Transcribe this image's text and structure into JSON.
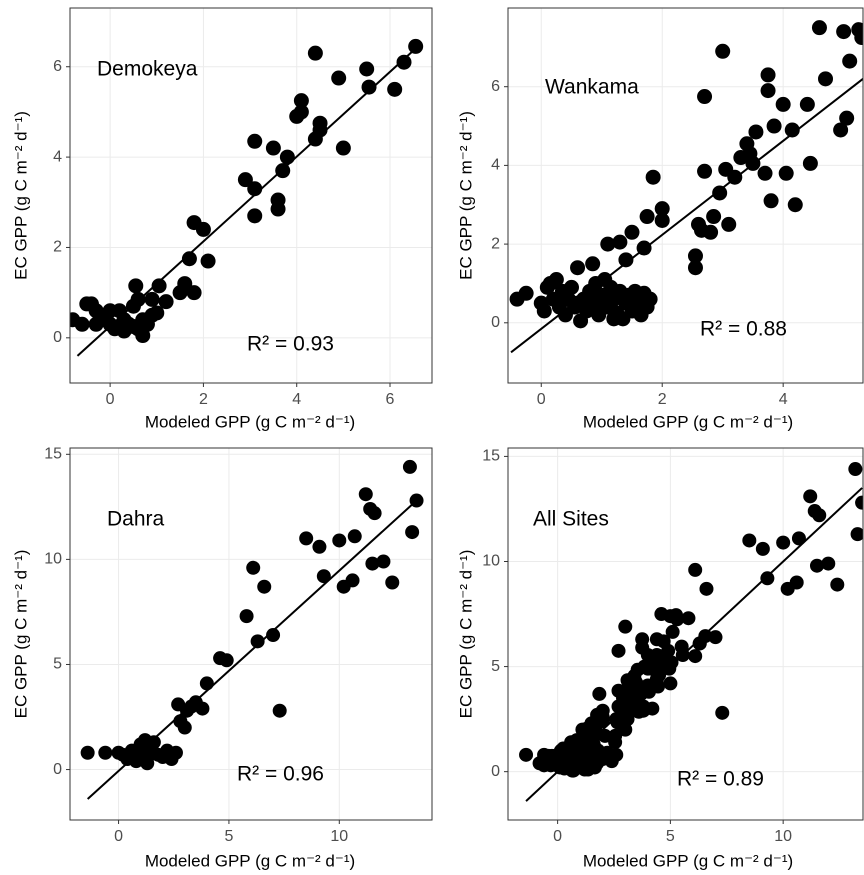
{
  "chart_data": [
    {
      "type": "scatter",
      "title": "Demokeya",
      "annotation": "R² = 0.93",
      "x_label": "Modeled GPP  (g C m⁻² d⁻¹)",
      "y_label": "EC GPP  (g C m⁻² d⁻¹)",
      "color": "#000000",
      "grid": true,
      "xlim": [
        -0.86,
        6.9
      ],
      "ylim": [
        -1.0,
        7.3
      ],
      "xticks": [
        0,
        2,
        4,
        6
      ],
      "yticks": [
        0,
        2,
        4,
        6
      ],
      "x": [
        -0.8,
        -0.6,
        -0.5,
        -0.4,
        -0.3,
        -0.2,
        -0.1,
        0,
        0.1,
        0.2,
        0.3,
        0.4,
        0.5,
        0.5,
        0.6,
        0.6,
        0.7,
        0.7,
        0.8,
        0.9,
        -0.3,
        0,
        0.3,
        0.55,
        0.9,
        1.0,
        1.05,
        1.2,
        1.5,
        1.6,
        1.7,
        1.8,
        1.8,
        2.0,
        2.1,
        2.9,
        3.1,
        3.1,
        3.1,
        3.5,
        3.6,
        3.6,
        3.7,
        3.8,
        4.0,
        4.1,
        4.1,
        4.4,
        4.4,
        4.5,
        4.5,
        4.9,
        5.0,
        5.5,
        5.55,
        6.1,
        6.3,
        6.55
      ],
      "values": [
        0.4,
        0.3,
        0.75,
        0.75,
        0.6,
        0.5,
        0.4,
        0.3,
        0.2,
        0.6,
        0.4,
        0.3,
        0.7,
        0.25,
        0.85,
        0.2,
        0.05,
        0.4,
        0.3,
        0.5,
        0.3,
        0.6,
        0.15,
        1.15,
        0.85,
        0.55,
        1.15,
        0.8,
        1.0,
        1.2,
        1.75,
        1.0,
        2.55,
        2.4,
        1.7,
        3.5,
        4.35,
        3.3,
        2.7,
        4.2,
        3.05,
        2.85,
        3.7,
        4.0,
        4.9,
        5.25,
        5.0,
        4.4,
        6.3,
        4.75,
        4.6,
        5.75,
        4.2,
        5.95,
        5.55,
        5.5,
        6.1,
        6.45
      ],
      "regression_line": {
        "x": [
          -0.7,
          6.6
        ],
        "y": [
          -0.4,
          6.45
        ]
      }
    },
    {
      "type": "scatter",
      "title": "Wankama",
      "annotation": "R² = 0.88",
      "x_label": "Modeled GPP  (g C m⁻² d⁻¹)",
      "y_label": "EC GPP  (g C m⁻² d⁻¹)",
      "color": "#000000",
      "grid": true,
      "xlim": [
        -0.55,
        5.32
      ],
      "ylim": [
        -1.53,
        8.0
      ],
      "xticks": [
        0,
        2,
        4
      ],
      "yticks": [
        0,
        2,
        4,
        6
      ],
      "x": [
        -0.4,
        -0.25,
        0,
        0.05,
        0.1,
        0.15,
        0.2,
        0.25,
        0.3,
        0.35,
        0.4,
        0.45,
        0.5,
        0.55,
        0.6,
        0.65,
        0.7,
        0.75,
        0.8,
        0.85,
        0.9,
        0.95,
        1.0,
        1.05,
        1.1,
        1.15,
        1.2,
        1.25,
        1.3,
        1.35,
        1.4,
        1.45,
        1.5,
        1.55,
        1.6,
        1.65,
        1.7,
        1.75,
        1.8,
        0.3,
        0.6,
        0.9,
        1.2,
        0.9,
        1.1,
        1.3,
        1.4,
        1.5,
        1.7,
        1.75,
        1.85,
        2.0,
        2.0,
        2.55,
        2.55,
        2.6,
        2.65,
        2.7,
        2.7,
        2.8,
        2.85,
        2.95,
        3.0,
        3.05,
        3.1,
        3.2,
        3.3,
        3.4,
        3.45,
        3.5,
        3.55,
        3.7,
        3.75,
        3.75,
        3.8,
        3.85,
        4.0,
        4.05,
        4.15,
        4.2,
        4.4,
        4.45,
        4.6,
        4.7,
        4.95,
        5.0,
        5.05,
        5.1,
        5.25,
        5.3
      ],
      "values": [
        0.6,
        0.75,
        0.5,
        0.3,
        0.9,
        1.0,
        0.6,
        1.1,
        0.4,
        0.8,
        0.2,
        0.6,
        0.9,
        0.4,
        1.4,
        0.05,
        0.6,
        0.3,
        0.8,
        1.5,
        0.5,
        0.2,
        0.7,
        1.1,
        0.4,
        0.9,
        0.6,
        0.25,
        0.8,
        0.1,
        0.5,
        0.7,
        0.3,
        0.8,
        0.55,
        0.2,
        0.75,
        0.4,
        0.6,
        0.6,
        0.5,
        0.35,
        0.1,
        1.0,
        2.0,
        2.05,
        1.6,
        2.3,
        1.9,
        2.7,
        3.7,
        2.6,
        2.9,
        1.4,
        1.7,
        2.5,
        2.35,
        3.85,
        5.75,
        2.3,
        2.7,
        3.3,
        6.9,
        3.9,
        2.5,
        3.7,
        4.2,
        4.55,
        4.3,
        4.05,
        4.85,
        3.8,
        5.9,
        6.3,
        3.1,
        5.0,
        5.55,
        3.8,
        4.9,
        3.0,
        5.55,
        4.05,
        7.5,
        6.2,
        4.9,
        7.4,
        5.2,
        6.65,
        7.45,
        7.25
      ],
      "regression_line": {
        "x": [
          -0.5,
          5.32
        ],
        "y": [
          -0.75,
          6.2
        ]
      }
    },
    {
      "type": "scatter",
      "title": "Dahra",
      "annotation": "R² = 0.96",
      "x_label": "Modeled GPP  (g C m⁻² d⁻¹)",
      "y_label": "EC GPP  (g C m⁻² d⁻¹)",
      "color": "#000000",
      "grid": true,
      "xlim": [
        -2.2,
        14.2
      ],
      "ylim": [
        -2.4,
        15.3
      ],
      "xticks": [
        0,
        5,
        10
      ],
      "yticks": [
        0,
        5,
        10,
        15
      ],
      "x": [
        -1.4,
        -0.6,
        0,
        0.2,
        0.4,
        0.6,
        0.8,
        0.9,
        1.0,
        1.1,
        1.2,
        1.3,
        1.4,
        1.5,
        1.6,
        1.8,
        2.0,
        2.2,
        2.4,
        2.6,
        2.7,
        2.8,
        3.0,
        3.1,
        3.3,
        3.5,
        3.8,
        4.0,
        4.6,
        4.9,
        5.8,
        6.1,
        6.3,
        6.6,
        7.0,
        7.3,
        8.5,
        9.1,
        9.3,
        10.0,
        10.2,
        10.6,
        10.7,
        11.2,
        11.4,
        11.5,
        11.6,
        12.0,
        12.4,
        13.2,
        13.3,
        13.5
      ],
      "values": [
        0.8,
        0.8,
        0.8,
        0.7,
        0.5,
        0.9,
        0.4,
        0.6,
        1.2,
        0.9,
        1.4,
        0.3,
        0.7,
        1.0,
        1.3,
        0.7,
        0.6,
        0.9,
        0.5,
        0.8,
        3.1,
        2.3,
        2.0,
        2.8,
        3.0,
        3.2,
        2.9,
        4.1,
        5.3,
        5.2,
        7.3,
        9.6,
        6.1,
        8.7,
        6.4,
        2.8,
        11.0,
        10.6,
        9.2,
        10.9,
        8.7,
        9.0,
        11.1,
        13.1,
        12.4,
        9.8,
        12.2,
        9.9,
        8.9,
        14.4,
        11.3,
        12.8
      ],
      "regression_line": {
        "x": [
          -1.4,
          13.5
        ],
        "y": [
          -1.4,
          12.8
        ]
      }
    },
    {
      "type": "scatter",
      "title": "All Sites",
      "annotation": "R² = 0.89",
      "x_label": "Modeled GPP  (g C m⁻² d⁻¹)",
      "y_label": "EC GPP  (g C m⁻² d⁻¹)",
      "color": "#000000",
      "grid": true,
      "xlim": [
        -2.2,
        13.54
      ],
      "ylim": [
        -2.3,
        15.4
      ],
      "xticks": [
        0,
        5,
        10
      ],
      "yticks": [
        0,
        5,
        10,
        15
      ],
      "x": [
        -0.8,
        -0.6,
        -0.5,
        -0.4,
        -0.3,
        -0.2,
        -0.1,
        0,
        0.1,
        0.2,
        0.3,
        0.4,
        0.5,
        0.5,
        0.6,
        0.6,
        0.7,
        0.7,
        0.8,
        0.9,
        -0.3,
        0,
        0.3,
        0.55,
        0.9,
        1.0,
        1.05,
        1.2,
        1.5,
        1.6,
        1.7,
        1.8,
        1.8,
        2.0,
        2.1,
        2.9,
        3.1,
        3.1,
        3.1,
        3.5,
        3.6,
        3.6,
        3.7,
        3.8,
        4.0,
        4.1,
        4.1,
        4.4,
        4.4,
        4.5,
        4.5,
        4.9,
        5.0,
        5.5,
        5.55,
        6.1,
        6.3,
        6.55,
        -0.4,
        -0.25,
        0,
        0.05,
        0.1,
        0.15,
        0.2,
        0.25,
        0.3,
        0.35,
        0.4,
        0.45,
        0.5,
        0.55,
        0.6,
        0.65,
        0.7,
        0.75,
        0.8,
        0.85,
        0.9,
        0.95,
        1.0,
        1.05,
        1.1,
        1.15,
        1.2,
        1.25,
        1.3,
        1.35,
        1.4,
        1.45,
        1.5,
        1.55,
        1.6,
        1.65,
        1.7,
        1.75,
        1.8,
        0.3,
        0.6,
        0.9,
        1.2,
        0.9,
        1.1,
        1.3,
        1.4,
        1.5,
        1.7,
        1.75,
        1.85,
        2.0,
        2.0,
        2.55,
        2.55,
        2.6,
        2.65,
        2.7,
        2.7,
        2.8,
        2.85,
        2.95,
        3.0,
        3.05,
        3.1,
        3.2,
        3.3,
        3.4,
        3.45,
        3.5,
        3.55,
        3.7,
        3.75,
        3.75,
        3.8,
        3.85,
        4.0,
        4.05,
        4.15,
        4.2,
        4.4,
        4.45,
        4.6,
        4.7,
        4.95,
        5.0,
        5.05,
        5.1,
        5.25,
        5.3,
        -1.4,
        -0.6,
        0,
        0.2,
        0.4,
        0.6,
        0.8,
        0.9,
        1.0,
        1.1,
        1.2,
        1.3,
        1.4,
        1.5,
        1.6,
        1.8,
        2.0,
        2.2,
        2.4,
        2.6,
        2.7,
        2.8,
        3.0,
        3.1,
        3.3,
        3.5,
        3.8,
        4.0,
        4.6,
        4.9,
        5.8,
        6.1,
        6.3,
        6.6,
        7.0,
        7.3,
        8.5,
        9.1,
        9.3,
        10.0,
        10.2,
        10.6,
        10.7,
        11.2,
        11.4,
        11.5,
        11.6,
        12.0,
        12.4,
        13.2,
        13.3,
        13.5
      ],
      "values": [
        0.4,
        0.3,
        0.75,
        0.75,
        0.6,
        0.5,
        0.4,
        0.3,
        0.2,
        0.6,
        0.4,
        0.3,
        0.7,
        0.25,
        0.85,
        0.2,
        0.05,
        0.4,
        0.3,
        0.5,
        0.3,
        0.6,
        0.15,
        1.15,
        0.85,
        0.55,
        1.15,
        0.8,
        1.0,
        1.2,
        1.75,
        1.0,
        2.55,
        2.4,
        1.7,
        3.5,
        4.35,
        3.3,
        2.7,
        4.2,
        3.05,
        2.85,
        3.7,
        4.0,
        4.9,
        5.25,
        5.0,
        4.4,
        6.3,
        4.75,
        4.6,
        5.75,
        4.2,
        5.95,
        5.55,
        5.5,
        6.1,
        6.45,
        0.6,
        0.75,
        0.5,
        0.3,
        0.9,
        1.0,
        0.6,
        1.1,
        0.4,
        0.8,
        0.2,
        0.6,
        0.9,
        0.4,
        1.4,
        0.05,
        0.6,
        0.3,
        0.8,
        1.5,
        0.5,
        0.2,
        0.7,
        1.1,
        0.4,
        0.9,
        0.6,
        0.25,
        0.8,
        0.1,
        0.5,
        0.7,
        0.3,
        0.8,
        0.55,
        0.2,
        0.75,
        0.4,
        0.6,
        0.6,
        0.5,
        0.35,
        0.1,
        1.0,
        2.0,
        2.05,
        1.6,
        2.3,
        1.9,
        2.7,
        3.7,
        2.6,
        2.9,
        1.4,
        1.7,
        2.5,
        2.35,
        3.85,
        5.75,
        2.3,
        2.7,
        3.3,
        6.9,
        3.9,
        2.5,
        3.7,
        4.2,
        4.55,
        4.3,
        4.05,
        4.85,
        3.8,
        5.9,
        6.3,
        3.1,
        5.0,
        5.55,
        3.8,
        4.9,
        3.0,
        5.55,
        4.05,
        7.5,
        6.2,
        4.9,
        7.4,
        5.2,
        6.65,
        7.45,
        7.25,
        0.8,
        0.8,
        0.8,
        0.7,
        0.5,
        0.9,
        0.4,
        0.6,
        1.2,
        0.9,
        1.4,
        0.3,
        0.7,
        1.0,
        1.3,
        0.7,
        0.6,
        0.9,
        0.5,
        0.8,
        3.1,
        2.3,
        2.0,
        2.8,
        3.0,
        3.2,
        2.9,
        4.1,
        5.3,
        5.2,
        7.3,
        9.6,
        6.1,
        8.7,
        6.4,
        2.8,
        11.0,
        10.6,
        9.2,
        10.9,
        8.7,
        9.0,
        11.1,
        13.1,
        12.4,
        9.8,
        12.2,
        9.9,
        8.9,
        14.4,
        11.3,
        12.8
      ],
      "regression_line": {
        "x": [
          -1.4,
          13.5
        ],
        "y": [
          -1.4,
          13.5
        ]
      }
    }
  ]
}
